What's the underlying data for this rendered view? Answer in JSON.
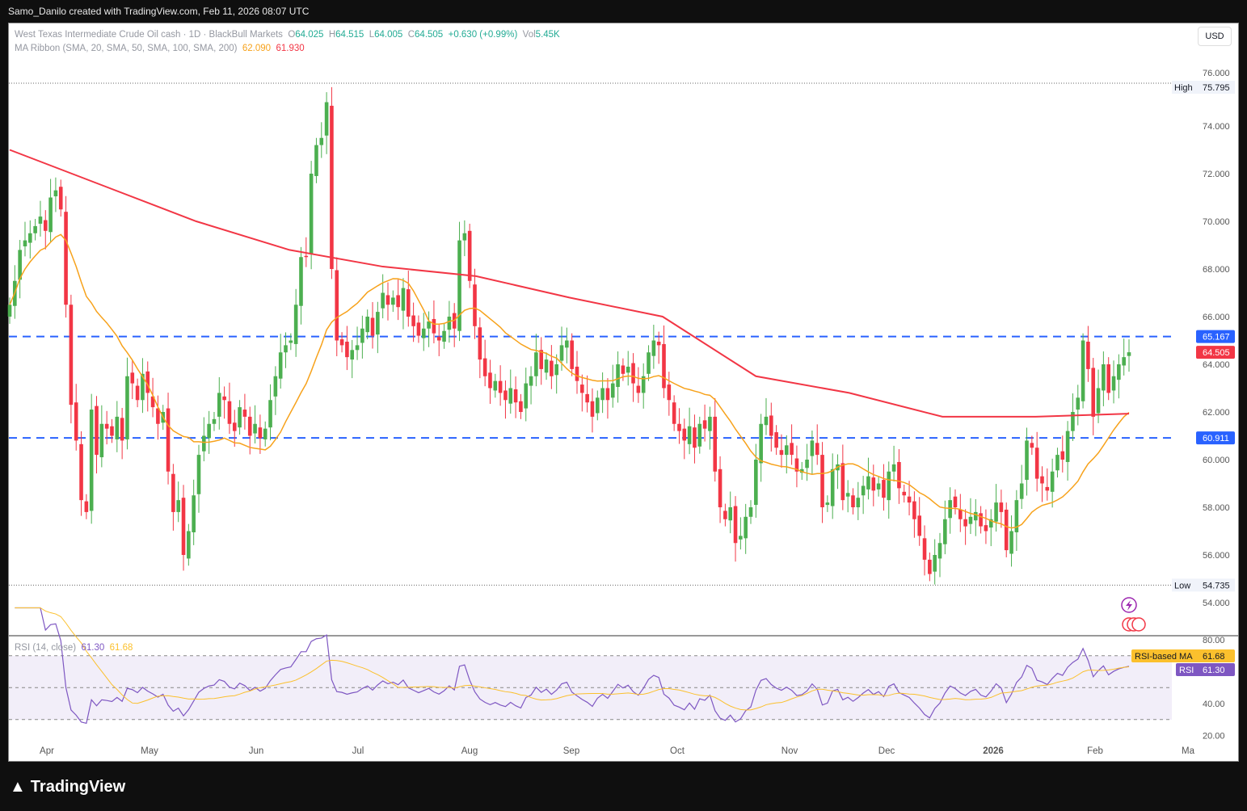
{
  "header": {
    "credit": "Samo_Danilo created with TradingView.com, Feb 11, 2026 08:07 UTC"
  },
  "legend": {
    "symbol": "West Texas Intermediate Crude Oil cash · 1D · BlackBull Markets",
    "o_label": "O",
    "o": "64.025",
    "h_label": "H",
    "h": "64.515",
    "l_label": "L",
    "l": "64.005",
    "c_label": "C",
    "c": "64.505",
    "change": "+0.630 (+0.99%)",
    "vol_label": "Vol",
    "vol": "5.45K",
    "ma_label": "MA Ribbon (SMA, 20, SMA, 50, SMA, 100, SMA, 200)",
    "ma_fast": "62.090",
    "ma_slow": "61.930",
    "rsi_label": "RSI (14, close)",
    "rsi": "61.30",
    "rsi_ma": "61.68"
  },
  "currency": "USD",
  "footer": {
    "brand": "TradingView"
  },
  "colors": {
    "up": "#4caf50",
    "down": "#f23645",
    "ma_fast": "#f7a21b",
    "ma_slow": "#f23645",
    "level": "#2962ff",
    "rsi": "#7e57c2",
    "rsi_ma": "#fbc02d"
  },
  "chart_data": {
    "type": "candlestick",
    "title": "West Texas Intermediate Crude Oil cash · 1D",
    "ylim": [
      53,
      76.5
    ],
    "y_ticks": [
      "76.000",
      "74.000",
      "72.000",
      "70.000",
      "68.000",
      "66.000",
      "64.000",
      "62.000",
      "60.000",
      "58.000",
      "56.000",
      "54.000"
    ],
    "x_ticks": [
      "Apr",
      "May",
      "Jun",
      "Jul",
      "Aug",
      "Sep",
      "Oct",
      "Nov",
      "Dec",
      "2026",
      "Feb",
      "Ma"
    ],
    "closes": [
      66.5,
      67.5,
      68.8,
      69.2,
      69.5,
      69.8,
      70.2,
      69.6,
      71,
      71.3,
      70.5,
      66.5,
      62.3,
      60.8,
      58.3,
      57.8,
      62.1,
      60.2,
      61.5,
      61.3,
      61.0,
      61.8,
      60.8,
      63.5,
      63.2,
      62.5,
      63.6,
      62.8,
      62.2,
      61.5,
      62.0,
      59.5,
      57.8,
      58.3,
      56.0,
      57.0,
      58.5,
      60.2,
      61.0,
      61.5,
      61.7,
      62.8,
      62.5,
      61.5,
      61.2,
      62.2,
      61.8,
      61.0,
      61.5,
      60.9,
      61.3,
      62.5,
      63.5,
      64.5,
      64.8,
      65.0,
      66.5,
      68.5,
      68.5,
      72.0,
      73.2,
      73.5,
      75.0,
      68.0,
      65.0,
      64.8,
      64.3,
      64.6,
      64.8,
      65.5,
      66.0,
      65.2,
      66.2,
      67.0,
      66.5,
      66.8,
      66.4,
      67.2,
      66.0,
      65.6,
      65.2,
      65.5,
      65.8,
      65.3,
      65.0,
      65.4,
      66.0,
      65.5,
      69.2,
      69.5,
      67.5,
      65.6,
      64.2,
      63.5,
      63.0,
      63.3,
      62.8,
      62.5,
      63.0,
      62.4,
      62.0,
      63.2,
      63.5,
      64.5,
      63.8,
      64.2,
      63.5,
      64.0,
      64.8,
      65.0,
      63.8,
      63.3,
      62.8,
      62.4,
      61.8,
      62.6,
      63.0,
      62.5,
      63.2,
      64.0,
      63.6,
      63.9,
      63.2,
      62.8,
      63.5,
      64.5,
      65.0,
      64.8,
      63.0,
      62.5,
      61.5,
      61.2,
      60.8,
      61.4,
      60.5,
      61.5,
      61.3,
      61.8,
      59.5,
      58.0,
      57.5,
      58.0,
      56.5,
      56.8,
      57.6,
      58.0,
      60.0,
      61.5,
      61.8,
      61.0,
      60.5,
      60.2,
      60.6,
      60.2,
      59.5,
      59.6,
      60.0,
      60.8,
      60.2,
      58.0,
      58.2,
      59.6,
      59.8,
      58.3,
      58.6,
      58.0,
      58.4,
      58.9,
      59.3,
      58.7,
      59.0,
      58.4,
      59.5,
      59.8,
      58.8,
      58.5,
      58.2,
      57.5,
      56.8,
      55.8,
      55.2,
      56.0,
      56.5,
      57.5,
      58.3,
      58.0,
      57.5,
      57.2,
      57.6,
      57.8,
      57.2,
      57.0,
      57.5,
      58.2,
      57.8,
      56.2,
      57.0,
      58.3,
      59.0,
      60.8,
      60.5,
      59.2,
      59.0,
      58.7,
      59.5,
      60.2,
      60.0,
      61.2,
      62.0,
      62.6,
      65.0,
      63.8,
      61.8,
      63.0,
      64.0,
      62.8,
      63.5,
      64.0,
      64.3,
      64.505
    ],
    "ma200": [
      73.0,
      71.5,
      70.0,
      68.8,
      68.1,
      67.7,
      66.8,
      66.0,
      63.5,
      62.8,
      61.8,
      61.8,
      61.93
    ],
    "levels": [
      {
        "label": "65.167",
        "value": 65.167
      },
      {
        "label": "60.911",
        "value": 60.911
      }
    ],
    "high": {
      "label": "High",
      "value": 75.795,
      "text": "75.795"
    },
    "low": {
      "label": "Low",
      "value": 54.735,
      "text": "54.735"
    },
    "last": {
      "value": 64.505,
      "text": "64.505"
    },
    "rsi": {
      "ylim": [
        15,
        85
      ],
      "ticks": [
        "80.00",
        "40.00",
        "20.00"
      ],
      "bands": [
        70,
        50,
        30
      ],
      "ma_label": "RSI-based MA",
      "ma_value": "61.68",
      "rsi_label": "RSI",
      "rsi_value": "61.30"
    }
  }
}
